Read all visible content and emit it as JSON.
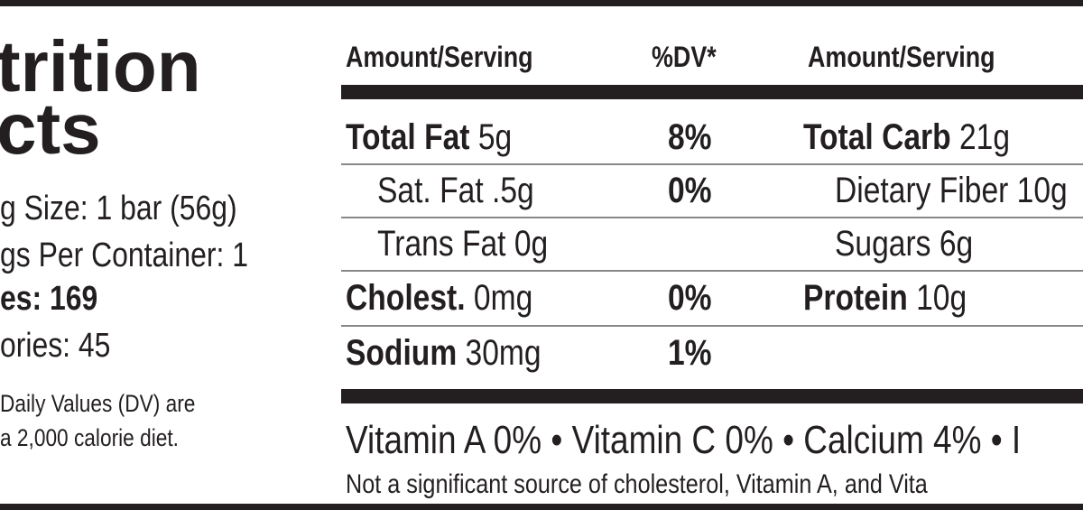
{
  "title": [
    "trition",
    "cts"
  ],
  "serving_info": [
    "g Size: 1 bar (56g)",
    "gs Per Container: 1"
  ],
  "calories": {
    "label": "es:",
    "value": "169"
  },
  "fat_calories": "ories: 45",
  "footnote": [
    "Daily Values (DV) are",
    "a 2,000 calorie diet."
  ],
  "table": {
    "headers": [
      "Amount/Serving",
      "%DV*",
      "Amount/Serving"
    ],
    "rows": [
      {
        "left": {
          "name": "Total Fat",
          "amount": "5g",
          "bold": true
        },
        "dv": "8%",
        "right": {
          "name": "Total Carb",
          "amount": "21g",
          "bold": true
        }
      },
      {
        "left": {
          "name": "Sat. Fat",
          "amount": ".5g",
          "bold": false
        },
        "dv": "0%",
        "right": {
          "name": "Dietary Fiber",
          "amount": "10g",
          "bold": false
        }
      },
      {
        "left": {
          "name": "Trans Fat",
          "amount": "0g",
          "bold": false
        },
        "right": {
          "name": "Sugars",
          "amount": "6g",
          "bold": false
        }
      },
      {
        "left": {
          "name": "Cholest.",
          "amount": "0mg",
          "bold": true
        },
        "dv": "0%",
        "right": {
          "name": "Protein",
          "amount": "10g",
          "bold": true
        }
      },
      {
        "left": {
          "name": "Sodium",
          "amount": "30mg",
          "bold": true
        },
        "dv": "1%"
      }
    ]
  },
  "vitamins": "Vitamin A 0% • Vitamin C 0% • Calcium 4% • I",
  "note": "Not a significant source of cholesterol, Vitamin A, and Vita"
}
